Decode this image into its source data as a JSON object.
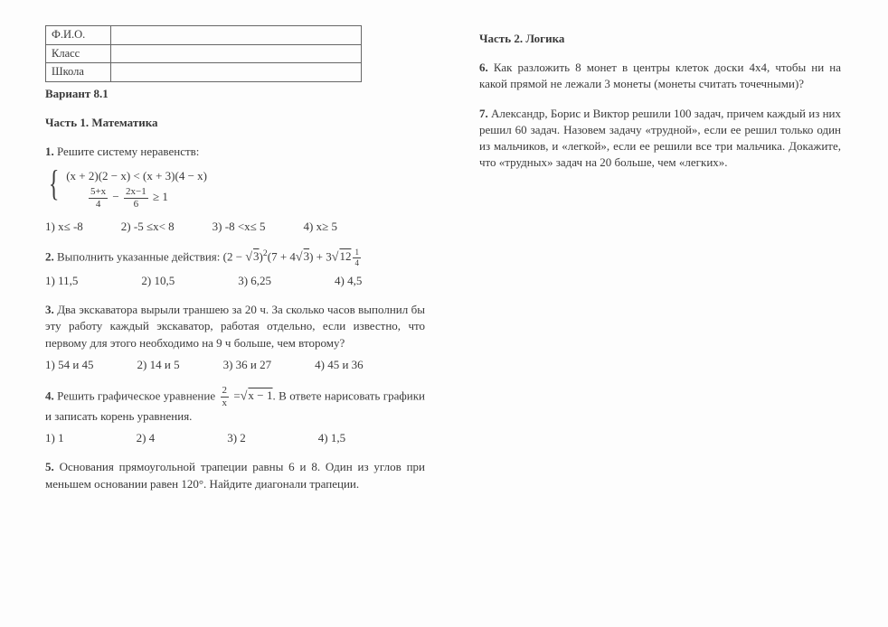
{
  "header": {
    "rows": [
      {
        "label": "Ф.И.О.",
        "value": ""
      },
      {
        "label": "Класс",
        "value": ""
      },
      {
        "label": "Школа",
        "value": ""
      }
    ],
    "variant": "Вариант 8.1"
  },
  "part1": {
    "title": "Часть 1. Математика",
    "q1": {
      "num": "1.",
      "intro": "Решите систему неравенств:",
      "line1_a": "(x + 2)(2 − x) < (x + 3)(4 − x)",
      "frac1_num": "5+x",
      "frac1_den": "4",
      "minus": " − ",
      "frac2_num": "2x−1",
      "frac2_den": "6",
      "tail": " ≥ 1",
      "answers": [
        "1) x≤ -8",
        "2) -5 ≤x< 8",
        "3) -8 <x≤ 5",
        "4) x≥ 5"
      ]
    },
    "q2": {
      "num": "2.",
      "intro": "Выполнить указанные действия: ",
      "expr_a": "(2 − ",
      "sqrt3": "3",
      "expr_b": ")",
      "sq": "2",
      "expr_c": "(7 + 4",
      "expr_d": ") + 3",
      "mix_int": "12",
      "mix_num": "1",
      "mix_den": "4",
      "answers": [
        "1) 11,5",
        "2) 10,5",
        "3) 6,25",
        "4) 4,5"
      ]
    },
    "q3": {
      "num": "3.",
      "text": "Два экскаватора вырыли траншею за 20 ч. За сколько часов выполнил бы эту работу каждый экскаватор, работая отдельно, если известно, что первому для этого необходимо на 9 ч больше, чем второму?",
      "answers": [
        "1) 54 и 45",
        "2) 14 и 5",
        "3) 36 и 27",
        "4) 45 и 36"
      ]
    },
    "q4": {
      "num": "4.",
      "text_a": "Решить графическое уравнение ",
      "frac_num": "2",
      "frac_den": "x",
      "eq": " =",
      "under": "x − 1",
      "text_b": ". В ответе нарисовать графики и записать корень уравнения.",
      "answers": [
        "1) 1",
        "2) 4",
        "3) 2",
        "4) 1,5"
      ]
    },
    "q5": {
      "num": "5.",
      "text": "Основания прямоугольной трапеции равны 6 и 8. Один из углов при меньшем основании равен 120°. Найдите диагонали трапеции."
    }
  },
  "part2": {
    "title": "Часть 2. Логика",
    "q6": {
      "num": "6.",
      "text": "Как разложить 8 монет в центры клеток доски 4х4, чтобы ни на какой прямой не лежали 3 монеты (монеты считать точечными)?"
    },
    "q7": {
      "num": "7.",
      "text": "Александр, Борис и Виктор решили 100 задач, причем каждый из них решил 60 задач. Назовем задачу «трудной», если ее решил только один из мальчиков, и «легкой»,  если ее решили все три мальчика. Докажите, что «трудных» задач на 20 больше, чем «легких»."
    }
  }
}
